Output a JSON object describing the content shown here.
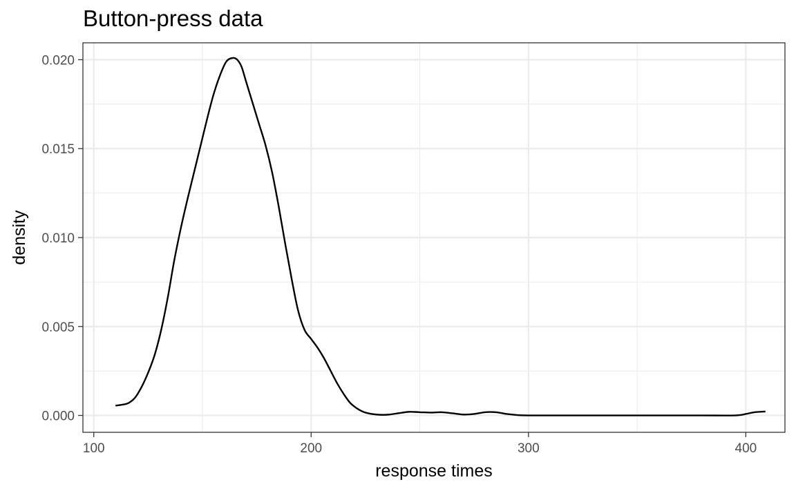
{
  "chart_data": {
    "type": "line",
    "title": "Button-press data",
    "xlabel": "response times",
    "ylabel": "density",
    "xlim": [
      95,
      418
    ],
    "ylim": [
      -0.00095,
      0.02095
    ],
    "x_ticks": [
      100,
      200,
      300,
      400
    ],
    "x_minor_ticks": [
      150,
      250,
      350
    ],
    "y_ticks": [
      0.0,
      0.005,
      0.01,
      0.015,
      0.02
    ],
    "y_minor_ticks": [
      0.0025,
      0.0075,
      0.0125,
      0.0175
    ],
    "x_tick_labels": [
      "100",
      "200",
      "300",
      "400"
    ],
    "y_tick_labels": [
      "0.000",
      "0.005",
      "0.010",
      "0.015",
      "0.020"
    ],
    "grid": true,
    "series": [
      {
        "x": [
          110,
          113,
          116,
          119,
          122,
          125,
          128,
          131,
          134,
          137,
          140,
          143,
          146,
          149,
          152,
          155,
          158,
          161,
          164,
          166,
          168,
          170,
          173,
          176,
          179,
          182,
          185,
          188,
          191,
          194,
          197,
          200,
          203,
          206,
          209,
          212,
          215,
          218,
          221,
          224,
          227,
          230,
          233,
          236,
          240,
          245,
          250,
          255,
          260,
          265,
          270,
          275,
          280,
          285,
          290,
          295,
          300,
          320,
          340,
          360,
          380,
          395,
          400,
          404,
          409
        ],
        "y": [
          0.00055,
          0.0006,
          0.0007,
          0.001,
          0.0016,
          0.0024,
          0.0034,
          0.0048,
          0.0066,
          0.0087,
          0.0105,
          0.0121,
          0.0136,
          0.0151,
          0.0166,
          0.018,
          0.0191,
          0.0199,
          0.0201,
          0.02,
          0.0196,
          0.0188,
          0.0176,
          0.0164,
          0.0152,
          0.0137,
          0.0118,
          0.0097,
          0.0077,
          0.0059,
          0.0048,
          0.0043,
          0.0038,
          0.0032,
          0.0025,
          0.0018,
          0.0012,
          0.0007,
          0.0004,
          0.0002,
          0.0001,
          5e-05,
          3e-05,
          5e-05,
          0.00012,
          0.0002,
          0.00018,
          0.00016,
          0.00018,
          0.00012,
          5e-05,
          8e-05,
          0.00018,
          0.00018,
          8e-05,
          2e-05,
          0.0,
          0.0,
          0.0,
          0.0,
          0.0,
          0.0,
          8e-05,
          0.00018,
          0.00022
        ]
      }
    ]
  }
}
